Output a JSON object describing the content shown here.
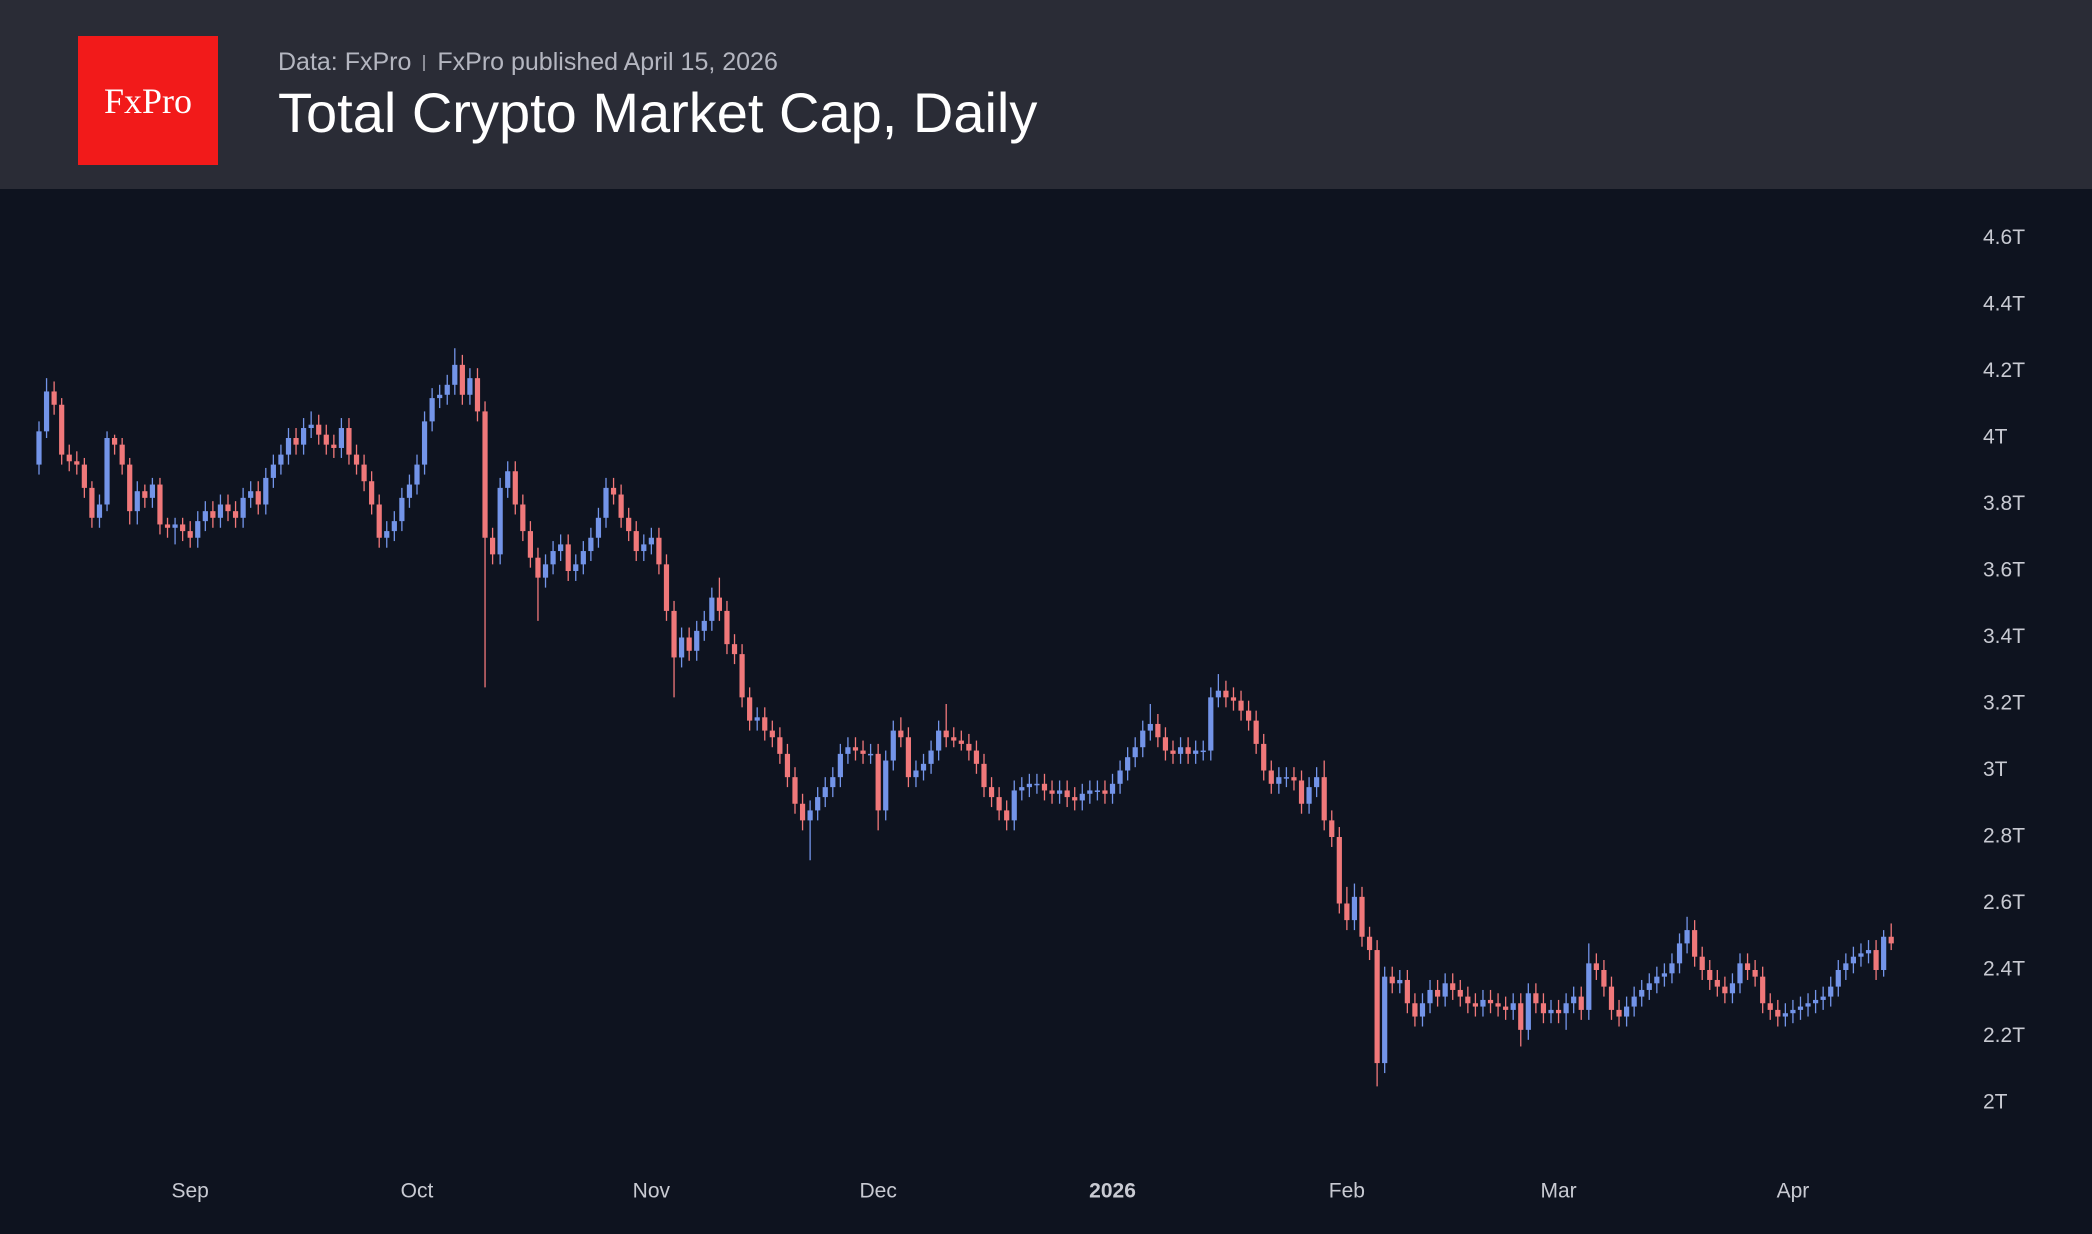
{
  "logo": "FxPro",
  "chart_data": {
    "type": "candlestick",
    "source": "Data: FxPro",
    "subtitle": "FxPro published April 15, 2026",
    "title": "Total Crypto Market Cap, Daily",
    "up_color": "#7394e8",
    "down_color": "#f0787a",
    "ylim": [
      1.75,
      4.75
    ],
    "yticks": [
      {
        "value": 2,
        "label": "2T"
      },
      {
        "value": 2.2,
        "label": "2.2T"
      },
      {
        "value": 2.4,
        "label": "2.4T"
      },
      {
        "value": 2.6,
        "label": "2.6T"
      },
      {
        "value": 2.8,
        "label": "2.8T"
      },
      {
        "value": 3,
        "label": "3T"
      },
      {
        "value": 3.2,
        "label": "3.2T"
      },
      {
        "value": 3.4,
        "label": "3.4T"
      },
      {
        "value": 3.6,
        "label": "3.6T"
      },
      {
        "value": 3.8,
        "label": "3.8T"
      },
      {
        "value": 4,
        "label": "4T"
      },
      {
        "value": 4.2,
        "label": "4.2T"
      },
      {
        "value": 4.4,
        "label": "4.4T"
      },
      {
        "value": 4.6,
        "label": "4.6T"
      }
    ],
    "categories": [
      null,
      null,
      null,
      null,
      null,
      null,
      null,
      null,
      null,
      null,
      null,
      null,
      null,
      null,
      null,
      null,
      null,
      null,
      null,
      null,
      "Sep",
      null,
      null,
      null,
      null,
      null,
      null,
      null,
      null,
      null,
      null,
      null,
      null,
      null,
      null,
      null,
      null,
      null,
      null,
      null,
      null,
      null,
      null,
      null,
      null,
      null,
      null,
      null,
      null,
      null,
      "Oct",
      null,
      null,
      null,
      null,
      null,
      null,
      null,
      null,
      null,
      null,
      null,
      null,
      null,
      null,
      null,
      null,
      null,
      null,
      null,
      null,
      null,
      null,
      null,
      null,
      null,
      null,
      null,
      null,
      null,
      null,
      "Nov",
      null,
      null,
      null,
      null,
      null,
      null,
      null,
      null,
      null,
      null,
      null,
      null,
      null,
      null,
      null,
      null,
      null,
      null,
      null,
      null,
      null,
      null,
      null,
      null,
      null,
      null,
      null,
      null,
      null,
      "Dec",
      null,
      null,
      null,
      null,
      null,
      null,
      null,
      null,
      null,
      null,
      null,
      null,
      null,
      null,
      null,
      null,
      null,
      null,
      null,
      null,
      null,
      null,
      null,
      null,
      null,
      null,
      null,
      null,
      null,
      null,
      "2026",
      null,
      null,
      null,
      null,
      null,
      null,
      null,
      null,
      null,
      null,
      null,
      null,
      null,
      null,
      null,
      null,
      null,
      null,
      null,
      null,
      null,
      null,
      null,
      null,
      null,
      null,
      null,
      null,
      null,
      null,
      "Feb",
      null,
      null,
      null,
      null,
      null,
      null,
      null,
      null,
      null,
      null,
      null,
      null,
      null,
      null,
      null,
      null,
      null,
      null,
      null,
      null,
      null,
      null,
      null,
      null,
      null,
      null,
      null,
      "Mar",
      null,
      null,
      null,
      null,
      null,
      null,
      null,
      null,
      null,
      null,
      null,
      null,
      null,
      null,
      null,
      null,
      null,
      null,
      null,
      null,
      null,
      null,
      null,
      null,
      null,
      null,
      null,
      null,
      null,
      null,
      "Apr",
      null,
      null,
      null,
      null,
      null,
      null,
      null,
      null,
      null,
      null,
      null,
      null,
      null
    ],
    "open": [
      3.92,
      4.02,
      4.14,
      4.1,
      3.95,
      3.93,
      3.92,
      3.85,
      3.76,
      3.8,
      4.0,
      3.98,
      3.92,
      3.78,
      3.84,
      3.82,
      3.86,
      3.74,
      3.73,
      3.74,
      3.72,
      3.7,
      3.75,
      3.78,
      3.76,
      3.8,
      3.78,
      3.76,
      3.82,
      3.84,
      3.8,
      3.88,
      3.92,
      3.95,
      4.0,
      3.98,
      4.03,
      4.04,
      4.01,
      3.98,
      3.97,
      4.03,
      3.95,
      3.92,
      3.87,
      3.8,
      3.7,
      3.72,
      3.75,
      3.82,
      3.86,
      3.92,
      4.05,
      4.12,
      4.13,
      4.16,
      4.22,
      4.13,
      4.18,
      4.08,
      3.7,
      3.65,
      3.85,
      3.9,
      3.8,
      3.72,
      3.64,
      3.58,
      3.62,
      3.66,
      3.68,
      3.6,
      3.62,
      3.66,
      3.7,
      3.76,
      3.85,
      3.83,
      3.76,
      3.72,
      3.66,
      3.68,
      3.7,
      3.62,
      3.48,
      3.34,
      3.4,
      3.36,
      3.42,
      3.45,
      3.52,
      3.48,
      3.38,
      3.35,
      3.22,
      3.15,
      3.16,
      3.12,
      3.1,
      3.05,
      2.98,
      2.9,
      2.85,
      2.88,
      2.92,
      2.95,
      2.98,
      3.05,
      3.07,
      3.06,
      3.05,
      3.05,
      2.88,
      3.03,
      3.12,
      3.1,
      2.98,
      3.0,
      3.02,
      3.06,
      3.12,
      3.1,
      3.09,
      3.08,
      3.06,
      3.02,
      2.95,
      2.92,
      2.88,
      2.85,
      2.94,
      2.95,
      2.96,
      2.96,
      2.94,
      2.93,
      2.94,
      2.92,
      2.91,
      2.93,
      2.94,
      2.94,
      2.93,
      2.96,
      3.0,
      3.04,
      3.07,
      3.12,
      3.14,
      3.1,
      3.06,
      3.05,
      3.07,
      3.05,
      3.06,
      3.06,
      3.22,
      3.24,
      3.22,
      3.21,
      3.18,
      3.15,
      3.08,
      3.0,
      2.96,
      2.98,
      2.98,
      2.97,
      2.9,
      2.95,
      2.98,
      2.85,
      2.8,
      2.6,
      2.55,
      2.62,
      2.5,
      2.46,
      2.12,
      2.38,
      2.36,
      2.37,
      2.3,
      2.26,
      2.3,
      2.34,
      2.32,
      2.36,
      2.34,
      2.32,
      2.3,
      2.29,
      2.31,
      2.3,
      2.29,
      2.28,
      2.3,
      2.22,
      2.33,
      2.3,
      2.27,
      2.28,
      2.27,
      2.3,
      2.32,
      2.28,
      2.42,
      2.4,
      2.35,
      2.28,
      2.26,
      2.29,
      2.32,
      2.34,
      2.36,
      2.38,
      2.39,
      2.42,
      2.48,
      2.52,
      2.44,
      2.4,
      2.37,
      2.35,
      2.33,
      2.36,
      2.42,
      2.4,
      2.38,
      2.3,
      2.28,
      2.26,
      2.27,
      2.28,
      2.29,
      2.3,
      2.31,
      2.32,
      2.35,
      2.4,
      2.42,
      2.44,
      2.45,
      2.46,
      2.4,
      2.5
    ],
    "high": [
      4.05,
      4.18,
      4.17,
      4.12,
      3.98,
      3.96,
      3.94,
      3.87,
      3.83,
      4.02,
      4.01,
      4.0,
      3.94,
      3.87,
      3.86,
      3.88,
      3.88,
      3.76,
      3.76,
      3.76,
      3.75,
      3.78,
      3.81,
      3.81,
      3.83,
      3.83,
      3.81,
      3.85,
      3.87,
      3.87,
      3.91,
      3.95,
      3.98,
      4.03,
      4.03,
      4.06,
      4.08,
      4.07,
      4.04,
      4.01,
      4.06,
      4.06,
      3.98,
      3.95,
      3.9,
      3.83,
      3.75,
      3.78,
      3.85,
      3.89,
      3.95,
      4.08,
      4.15,
      4.16,
      4.19,
      4.27,
      4.25,
      4.21,
      4.21,
      4.11,
      3.73,
      3.88,
      3.93,
      3.93,
      3.83,
      3.75,
      3.67,
      3.65,
      3.69,
      3.71,
      3.71,
      3.65,
      3.69,
      3.73,
      3.79,
      3.88,
      3.88,
      3.86,
      3.79,
      3.75,
      3.71,
      3.73,
      3.73,
      3.65,
      3.51,
      3.43,
      3.43,
      3.45,
      3.48,
      3.55,
      3.58,
      3.51,
      3.41,
      3.38,
      3.25,
      3.19,
      3.19,
      3.15,
      3.13,
      3.08,
      3.01,
      2.93,
      2.91,
      2.95,
      2.98,
      3.01,
      3.08,
      3.1,
      3.1,
      3.09,
      3.08,
      3.08,
      3.06,
      3.15,
      3.16,
      3.13,
      3.03,
      3.05,
      3.09,
      3.15,
      3.2,
      3.13,
      3.12,
      3.11,
      3.09,
      3.05,
      2.98,
      2.95,
      2.91,
      2.97,
      2.98,
      2.99,
      2.99,
      2.99,
      2.97,
      2.97,
      2.97,
      2.95,
      2.96,
      2.97,
      2.97,
      2.97,
      2.99,
      3.03,
      3.07,
      3.1,
      3.15,
      3.2,
      3.17,
      3.13,
      3.09,
      3.1,
      3.1,
      3.09,
      3.09,
      3.25,
      3.29,
      3.27,
      3.25,
      3.24,
      3.21,
      3.18,
      3.11,
      3.03,
      3.01,
      3.01,
      3.01,
      3.0,
      2.98,
      3.01,
      3.03,
      2.88,
      2.83,
      2.65,
      2.66,
      2.65,
      2.53,
      2.49,
      2.41,
      2.41,
      2.4,
      2.4,
      2.33,
      2.33,
      2.37,
      2.37,
      2.39,
      2.39,
      2.37,
      2.35,
      2.33,
      2.34,
      2.34,
      2.33,
      2.32,
      2.33,
      2.33,
      2.36,
      2.36,
      2.33,
      2.31,
      2.31,
      2.33,
      2.35,
      2.35,
      2.48,
      2.45,
      2.43,
      2.38,
      2.31,
      2.32,
      2.35,
      2.37,
      2.39,
      2.41,
      2.42,
      2.45,
      2.51,
      2.56,
      2.55,
      2.47,
      2.43,
      2.4,
      2.38,
      2.39,
      2.45,
      2.45,
      2.43,
      2.41,
      2.33,
      2.31,
      2.3,
      2.31,
      2.32,
      2.33,
      2.34,
      2.35,
      2.38,
      2.43,
      2.45,
      2.47,
      2.48,
      2.49,
      2.49,
      2.52,
      2.54
    ],
    "low": [
      3.89,
      4.0,
      4.07,
      3.92,
      3.9,
      3.89,
      3.82,
      3.73,
      3.73,
      3.78,
      3.95,
      3.89,
      3.74,
      3.74,
      3.79,
      3.79,
      3.71,
      3.7,
      3.68,
      3.69,
      3.67,
      3.67,
      3.72,
      3.73,
      3.73,
      3.75,
      3.73,
      3.73,
      3.79,
      3.77,
      3.77,
      3.85,
      3.89,
      3.92,
      3.95,
      3.95,
      4.0,
      3.98,
      3.95,
      3.94,
      3.94,
      3.92,
      3.89,
      3.84,
      3.77,
      3.67,
      3.67,
      3.69,
      3.72,
      3.79,
      3.83,
      3.89,
      4.02,
      4.09,
      4.1,
      4.13,
      4.1,
      4.1,
      4.05,
      3.25,
      3.62,
      3.62,
      3.82,
      3.77,
      3.69,
      3.61,
      3.45,
      3.55,
      3.59,
      3.63,
      3.57,
      3.57,
      3.59,
      3.63,
      3.67,
      3.73,
      3.8,
      3.73,
      3.69,
      3.63,
      3.63,
      3.65,
      3.59,
      3.45,
      3.22,
      3.31,
      3.33,
      3.33,
      3.39,
      3.42,
      3.45,
      3.35,
      3.32,
      3.19,
      3.12,
      3.12,
      3.09,
      3.07,
      3.02,
      2.95,
      2.87,
      2.82,
      2.73,
      2.85,
      2.89,
      2.92,
      2.95,
      3.02,
      3.03,
      3.02,
      3.02,
      2.82,
      2.85,
      3.0,
      3.07,
      2.95,
      2.95,
      2.97,
      2.99,
      3.03,
      3.07,
      3.07,
      3.06,
      3.03,
      2.99,
      2.92,
      2.89,
      2.85,
      2.82,
      2.82,
      2.91,
      2.92,
      2.93,
      2.91,
      2.9,
      2.9,
      2.89,
      2.88,
      2.88,
      2.9,
      2.91,
      2.9,
      2.9,
      2.93,
      2.97,
      3.01,
      3.04,
      3.09,
      3.07,
      3.03,
      3.02,
      3.02,
      3.02,
      3.02,
      3.03,
      3.03,
      3.19,
      3.19,
      3.18,
      3.15,
      3.12,
      3.05,
      2.97,
      2.93,
      2.93,
      2.95,
      2.94,
      2.87,
      2.87,
      2.92,
      2.82,
      2.77,
      2.57,
      2.52,
      2.52,
      2.47,
      2.43,
      2.05,
      2.09,
      2.33,
      2.33,
      2.27,
      2.23,
      2.23,
      2.27,
      2.29,
      2.29,
      2.31,
      2.29,
      2.27,
      2.26,
      2.26,
      2.27,
      2.26,
      2.25,
      2.25,
      2.17,
      2.19,
      2.27,
      2.24,
      2.24,
      2.24,
      2.22,
      2.27,
      2.25,
      2.25,
      2.37,
      2.32,
      2.25,
      2.23,
      2.23,
      2.26,
      2.29,
      2.31,
      2.33,
      2.35,
      2.36,
      2.39,
      2.45,
      2.41,
      2.37,
      2.34,
      2.32,
      2.3,
      2.3,
      2.33,
      2.37,
      2.35,
      2.27,
      2.25,
      2.23,
      2.23,
      2.24,
      2.25,
      2.26,
      2.27,
      2.28,
      2.29,
      2.32,
      2.37,
      2.39,
      2.41,
      2.42,
      2.37,
      2.38,
      2.46
    ],
    "close": [
      4.02,
      4.14,
      4.1,
      3.95,
      3.93,
      3.92,
      3.85,
      3.76,
      3.8,
      4.0,
      3.98,
      3.92,
      3.78,
      3.84,
      3.82,
      3.86,
      3.74,
      3.73,
      3.74,
      3.72,
      3.7,
      3.75,
      3.78,
      3.76,
      3.8,
      3.78,
      3.76,
      3.82,
      3.84,
      3.8,
      3.88,
      3.92,
      3.95,
      4.0,
      3.98,
      4.03,
      4.04,
      4.01,
      3.98,
      3.97,
      4.03,
      3.95,
      3.92,
      3.87,
      3.8,
      3.7,
      3.72,
      3.75,
      3.82,
      3.86,
      3.92,
      4.05,
      4.12,
      4.13,
      4.16,
      4.22,
      4.13,
      4.18,
      4.08,
      3.7,
      3.65,
      3.85,
      3.9,
      3.8,
      3.72,
      3.64,
      3.58,
      3.62,
      3.66,
      3.68,
      3.6,
      3.62,
      3.66,
      3.7,
      3.76,
      3.85,
      3.83,
      3.76,
      3.72,
      3.66,
      3.68,
      3.7,
      3.62,
      3.48,
      3.34,
      3.4,
      3.36,
      3.42,
      3.45,
      3.52,
      3.48,
      3.38,
      3.35,
      3.22,
      3.15,
      3.16,
      3.12,
      3.1,
      3.05,
      2.98,
      2.9,
      2.85,
      2.88,
      2.92,
      2.95,
      2.98,
      3.05,
      3.07,
      3.06,
      3.05,
      3.05,
      2.88,
      3.03,
      3.12,
      3.1,
      2.98,
      3.0,
      3.02,
      3.06,
      3.12,
      3.1,
      3.09,
      3.08,
      3.06,
      3.02,
      2.95,
      2.92,
      2.88,
      2.85,
      2.94,
      2.95,
      2.96,
      2.96,
      2.94,
      2.93,
      2.94,
      2.92,
      2.91,
      2.93,
      2.94,
      2.94,
      2.93,
      2.96,
      3.0,
      3.04,
      3.07,
      3.12,
      3.14,
      3.1,
      3.06,
      3.05,
      3.07,
      3.05,
      3.06,
      3.06,
      3.22,
      3.24,
      3.22,
      3.21,
      3.18,
      3.15,
      3.08,
      3.0,
      2.96,
      2.98,
      2.98,
      2.97,
      2.9,
      2.95,
      2.98,
      2.85,
      2.8,
      2.6,
      2.55,
      2.62,
      2.5,
      2.46,
      2.12,
      2.38,
      2.36,
      2.37,
      2.3,
      2.26,
      2.3,
      2.34,
      2.32,
      2.36,
      2.34,
      2.32,
      2.3,
      2.29,
      2.31,
      2.3,
      2.29,
      2.28,
      2.3,
      2.22,
      2.33,
      2.3,
      2.27,
      2.28,
      2.27,
      2.3,
      2.32,
      2.28,
      2.42,
      2.4,
      2.35,
      2.28,
      2.26,
      2.29,
      2.32,
      2.34,
      2.36,
      2.38,
      2.39,
      2.42,
      2.48,
      2.52,
      2.44,
      2.4,
      2.37,
      2.35,
      2.33,
      2.36,
      2.42,
      2.4,
      2.38,
      2.3,
      2.28,
      2.26,
      2.27,
      2.28,
      2.29,
      2.3,
      2.31,
      2.32,
      2.35,
      2.4,
      2.42,
      2.44,
      2.45,
      2.46,
      2.4,
      2.5,
      2.48
    ]
  }
}
